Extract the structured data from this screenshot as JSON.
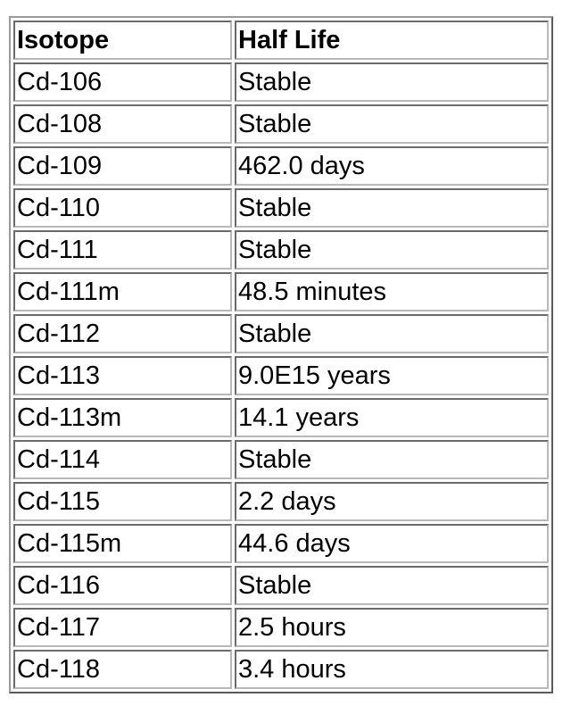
{
  "table": {
    "headers": [
      "Isotope",
      "Half Life"
    ],
    "rows": [
      [
        "Cd-106",
        "Stable"
      ],
      [
        "Cd-108",
        "Stable"
      ],
      [
        "Cd-109",
        "462.0 days"
      ],
      [
        "Cd-110",
        "Stable"
      ],
      [
        "Cd-111",
        "Stable"
      ],
      [
        "Cd-111m",
        "48.5 minutes"
      ],
      [
        "Cd-112",
        "Stable"
      ],
      [
        "Cd-113",
        "9.0E15 years"
      ],
      [
        "Cd-113m",
        "14.1 years"
      ],
      [
        "Cd-114",
        "Stable"
      ],
      [
        "Cd-115",
        "2.2 days"
      ],
      [
        "Cd-115m",
        "44.6 days"
      ],
      [
        "Cd-116",
        "Stable"
      ],
      [
        "Cd-117",
        "2.5 hours"
      ],
      [
        "Cd-118",
        "3.4 hours"
      ]
    ]
  }
}
